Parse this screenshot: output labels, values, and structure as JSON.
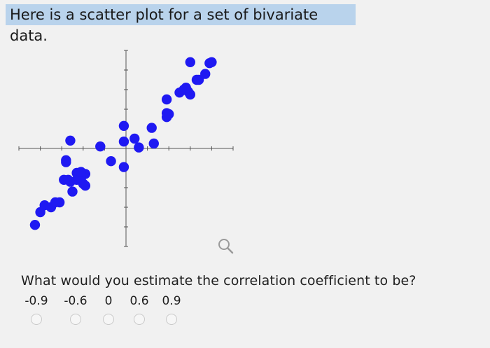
{
  "header": {
    "text": "Here is a scatter plot for a set of bivariate data."
  },
  "question": {
    "text": "What would you estimate the correlation coefficient to be?"
  },
  "options": [
    {
      "label": "-0.9"
    },
    {
      "label": "-0.6"
    },
    {
      "label": "0"
    },
    {
      "label": "0.6"
    },
    {
      "label": "0.9"
    }
  ],
  "icons": {
    "zoom": "magnifier-icon"
  },
  "colors": {
    "point": "#1f19f2",
    "banner": "#b9d3ec",
    "radio": "#c9c9c9"
  },
  "chart_data": {
    "type": "scatter",
    "points": [
      [
        -8.5,
        -7.8
      ],
      [
        -8.0,
        -6.5
      ],
      [
        -7.6,
        -5.8
      ],
      [
        -7.0,
        -6.0
      ],
      [
        -6.6,
        -5.5
      ],
      [
        -6.2,
        -5.5
      ],
      [
        -5.8,
        -3.2
      ],
      [
        -5.6,
        -1.2
      ],
      [
        -5.4,
        -3.2
      ],
      [
        -5.2,
        -3.4
      ],
      [
        -5.6,
        -1.4
      ],
      [
        -5.0,
        -4.4
      ],
      [
        -4.6,
        -3.2
      ],
      [
        -4.4,
        -3.0
      ],
      [
        -4.6,
        -2.5
      ],
      [
        -4.0,
        -3.6
      ],
      [
        -3.8,
        -3.8
      ],
      [
        -3.8,
        -2.6
      ],
      [
        -4.2,
        -3.0
      ],
      [
        -4.2,
        -2.4
      ],
      [
        -5.2,
        0.8
      ],
      [
        -2.4,
        0.2
      ],
      [
        -1.4,
        -1.3
      ],
      [
        -0.2,
        -1.9
      ],
      [
        -0.2,
        0.7
      ],
      [
        -0.2,
        2.3
      ],
      [
        0.8,
        1.0
      ],
      [
        1.2,
        0.1
      ],
      [
        2.4,
        2.1
      ],
      [
        2.6,
        0.5
      ],
      [
        3.8,
        3.6
      ],
      [
        3.8,
        3.2
      ],
      [
        4.0,
        3.5
      ],
      [
        3.8,
        5.0
      ],
      [
        5.0,
        5.7
      ],
      [
        5.4,
        6.0
      ],
      [
        5.8,
        5.8
      ],
      [
        6.0,
        5.5
      ],
      [
        5.6,
        6.2
      ],
      [
        6.6,
        7.0
      ],
      [
        6.8,
        7.0
      ],
      [
        6.0,
        8.8
      ],
      [
        7.4,
        7.6
      ],
      [
        7.8,
        8.7
      ],
      [
        8.0,
        8.8
      ]
    ],
    "xlim": [
      -10,
      10
    ],
    "ylim": [
      -10,
      10
    ]
  }
}
